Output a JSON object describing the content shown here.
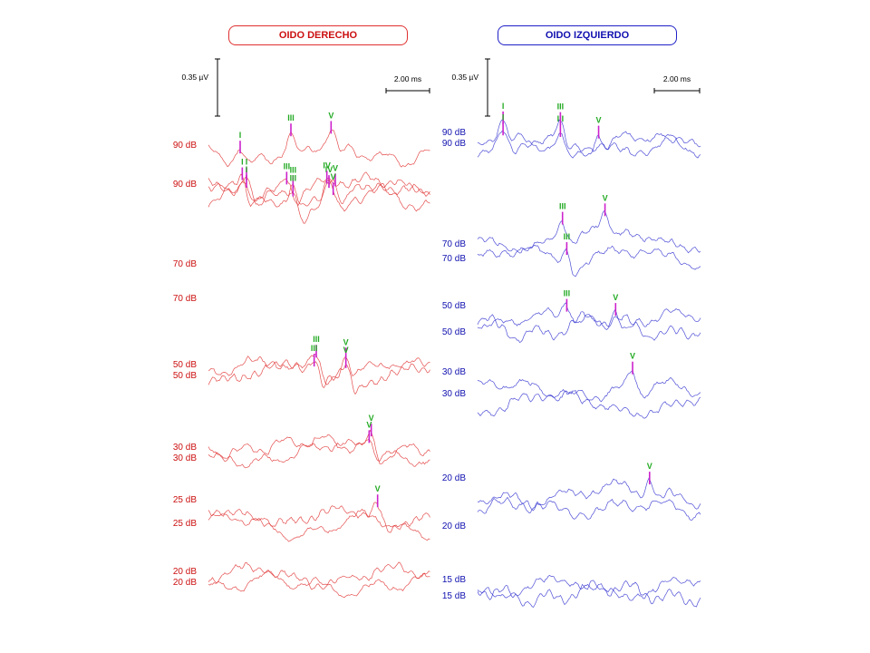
{
  "right_ear": {
    "title": "OIDO DERECHO",
    "color": "#e03030",
    "label_color": "#cc1010",
    "scale": {
      "amplitude_label": "0.35 µV",
      "time_label": "2.00 ms"
    },
    "traces": [
      {
        "level_label": "90 dB",
        "peaks": [
          {
            "name": "I",
            "latency_ms": 1.5
          },
          {
            "name": "III",
            "latency_ms": 3.9
          },
          {
            "name": "V",
            "latency_ms": 5.8
          }
        ]
      },
      {
        "level_label": "90 dB",
        "peaks": [
          {
            "name": "I",
            "latency_ms": 1.6
          },
          {
            "name": "III",
            "latency_ms": 3.7
          }
        ]
      },
      {
        "level_label": "70 dB",
        "peaks": [
          {
            "name": "I",
            "latency_ms": 1.8
          },
          {
            "name": "III",
            "latency_ms": 4.0
          },
          {
            "name": "IV",
            "latency_ms": 5.7
          },
          {
            "name": "V",
            "latency_ms": 6.0
          }
        ]
      },
      {
        "level_label": "70 dB",
        "peaks": [
          {
            "name": "I",
            "latency_ms": 1.8
          },
          {
            "name": "III",
            "latency_ms": 4.0
          },
          {
            "name": "IV",
            "latency_ms": 5.6
          },
          {
            "name": "V",
            "latency_ms": 5.9
          }
        ]
      },
      {
        "level_label": "50 dB",
        "peaks": [
          {
            "name": "III",
            "latency_ms": 5.1
          },
          {
            "name": "V",
            "latency_ms": 6.5
          }
        ]
      },
      {
        "level_label": "50 dB",
        "peaks": [
          {
            "name": "III",
            "latency_ms": 5.0
          },
          {
            "name": "V",
            "latency_ms": 6.5
          }
        ]
      },
      {
        "level_label": "30 dB",
        "peaks": [
          {
            "name": "V",
            "latency_ms": 7.7
          }
        ]
      },
      {
        "level_label": "30 dB",
        "peaks": [
          {
            "name": "V",
            "latency_ms": 7.6
          }
        ]
      },
      {
        "level_label": "25 dB",
        "peaks": [
          {
            "name": "V",
            "latency_ms": 8.0
          }
        ]
      },
      {
        "level_label": "25 dB",
        "peaks": []
      },
      {
        "level_label": "20 dB",
        "peaks": []
      },
      {
        "level_label": "20 dB",
        "peaks": []
      }
    ]
  },
  "left_ear": {
    "title": "OIDO IZQUIERDO",
    "color": "#3030d0",
    "label_color": "#1010b0",
    "scale": {
      "amplitude_label": "0.35 µV",
      "time_label": "2.00 ms"
    },
    "traces": [
      {
        "level_label": "90 dB",
        "peaks": [
          {
            "name": "I",
            "latency_ms": 1.2
          },
          {
            "name": "III",
            "latency_ms": 3.9
          },
          {
            "name": "V",
            "latency_ms": 5.7
          }
        ]
      },
      {
        "level_label": "90 dB",
        "peaks": [
          {
            "name": "I",
            "latency_ms": 1.2
          },
          {
            "name": "III",
            "latency_ms": 3.9
          }
        ]
      },
      {
        "level_label": "70 dB",
        "peaks": [
          {
            "name": "III",
            "latency_ms": 4.0
          },
          {
            "name": "V",
            "latency_ms": 6.0
          }
        ]
      },
      {
        "level_label": "70 dB",
        "peaks": [
          {
            "name": "III",
            "latency_ms": 4.2
          }
        ]
      },
      {
        "level_label": "50 dB",
        "peaks": [
          {
            "name": "III",
            "latency_ms": 4.2
          },
          {
            "name": "V",
            "latency_ms": 6.5
          }
        ]
      },
      {
        "level_label": "50 dB",
        "peaks": []
      },
      {
        "level_label": "30 dB",
        "peaks": [
          {
            "name": "V",
            "latency_ms": 7.3
          }
        ]
      },
      {
        "level_label": "30 dB",
        "peaks": []
      },
      {
        "level_label": "20 dB",
        "peaks": [
          {
            "name": "V",
            "latency_ms": 8.1
          }
        ]
      },
      {
        "level_label": "20 dB",
        "peaks": []
      },
      {
        "level_label": "15 dB",
        "peaks": []
      },
      {
        "level_label": "15 dB",
        "peaks": []
      }
    ]
  },
  "peak_marker_color": "#cc22cc",
  "peak_label_color": "#22aa22",
  "chart_data": {
    "type": "line",
    "title": "",
    "x_unit": "ms",
    "x_range_ms": [
      0,
      10.5
    ],
    "panels": [
      "OIDO DERECHO",
      "OIDO IZQUIERDO"
    ]
  }
}
